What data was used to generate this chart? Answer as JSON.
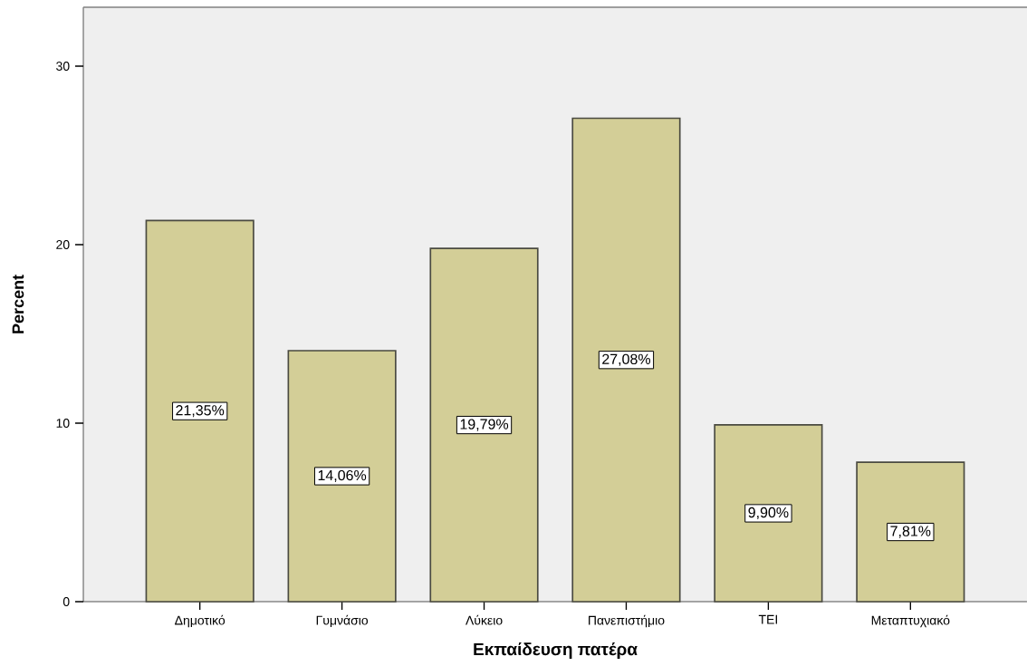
{
  "chart_data": {
    "type": "bar",
    "xlabel": "Εκπαίδευση πατέρα",
    "ylabel": "Percent",
    "categories": [
      "Δημοτικό",
      "Γυμνάσιο",
      "Λύκειο",
      "Πανεπιστήμιο",
      "ΤΕΙ",
      "Μεταπτυχιακό"
    ],
    "values": [
      21.35,
      14.06,
      19.79,
      27.08,
      9.9,
      7.81
    ],
    "value_labels": [
      "21,35%",
      "14,06%",
      "19,79%",
      "27,08%",
      "9,90%",
      "7,81%"
    ],
    "color": "#d3ce97",
    "ylim": [
      0,
      33.3
    ],
    "yticks": [
      0,
      10,
      20,
      30
    ]
  }
}
